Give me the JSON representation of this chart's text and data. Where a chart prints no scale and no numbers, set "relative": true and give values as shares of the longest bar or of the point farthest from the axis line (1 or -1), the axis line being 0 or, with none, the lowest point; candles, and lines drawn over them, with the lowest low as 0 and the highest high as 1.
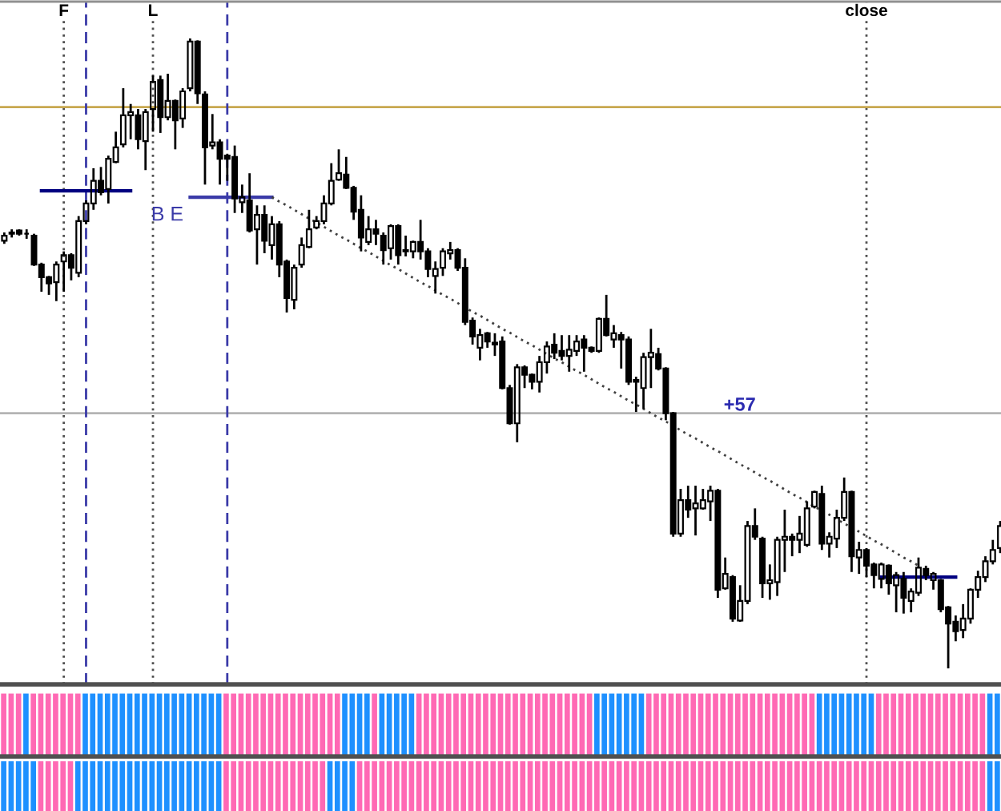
{
  "chart_data": [
    {
      "type": "candlestick",
      "relative": true,
      "tick_labels": "x",
      "color": "#000000",
      "categories": [
        null,
        null,
        null,
        null,
        null,
        null,
        null,
        null,
        "F",
        null,
        null,
        null,
        null,
        null,
        null,
        null,
        null,
        null,
        null,
        null,
        "L",
        null,
        null,
        null,
        null,
        null,
        null,
        null,
        null,
        null,
        null,
        null,
        null,
        null,
        null,
        null,
        null,
        null,
        null,
        null,
        null,
        null,
        null,
        null,
        null,
        null,
        null,
        null,
        null,
        null,
        null,
        null,
        null,
        null,
        null,
        null,
        null,
        null,
        null,
        null,
        null,
        null,
        null,
        null,
        null,
        null,
        null,
        null,
        null,
        null,
        null,
        null,
        null,
        null,
        null,
        null,
        null,
        null,
        null,
        null,
        null,
        null,
        null,
        null,
        null,
        null,
        null,
        null,
        null,
        null,
        null,
        null,
        null,
        null,
        null,
        null,
        null,
        null,
        null,
        null,
        null,
        null,
        null,
        null,
        null,
        null,
        null,
        null,
        null,
        null,
        null,
        null,
        null,
        null,
        null,
        null,
        "close",
        null,
        null,
        null,
        null,
        null,
        null,
        null,
        null,
        null,
        null,
        null,
        null,
        null,
        null,
        null,
        null,
        null,
        null
      ],
      "ohlc": [
        [
          0.679,
          0.692,
          0.674,
          0.687
        ],
        [
          0.69,
          0.697,
          0.684,
          0.692
        ],
        [
          0.695,
          0.697,
          0.687,
          0.69
        ],
        [
          0.69,
          0.697,
          0.682,
          0.69
        ],
        [
          0.687,
          0.69,
          0.639,
          0.641
        ],
        [
          0.641,
          0.644,
          0.598,
          0.621
        ],
        [
          0.621,
          0.623,
          0.593,
          0.611
        ],
        [
          0.613,
          0.646,
          0.583,
          0.641
        ],
        [
          0.646,
          0.662,
          0.598,
          0.656
        ],
        [
          0.656,
          0.659,
          0.616,
          0.636
        ],
        [
          0.628,
          0.718,
          0.621,
          0.71
        ],
        [
          0.71,
          0.743,
          0.705,
          0.738
        ],
        [
          0.738,
          0.794,
          0.728,
          0.774
        ],
        [
          0.774,
          0.796,
          0.751,
          0.756
        ],
        [
          0.761,
          0.814,
          0.738,
          0.809
        ],
        [
          0.804,
          0.852,
          0.802,
          0.827
        ],
        [
          0.832,
          0.921,
          0.827,
          0.878
        ],
        [
          0.878,
          0.896,
          0.84,
          0.883
        ],
        [
          0.878,
          0.888,
          0.824,
          0.84
        ],
        [
          0.837,
          0.888,
          0.791,
          0.883
        ],
        [
          0.888,
          0.941,
          0.852,
          0.931
        ],
        [
          0.934,
          0.941,
          0.85,
          0.875
        ],
        [
          0.875,
          0.944,
          0.87,
          0.901
        ],
        [
          0.901,
          0.903,
          0.824,
          0.87
        ],
        [
          0.873,
          0.921,
          0.858,
          0.916
        ],
        [
          0.921,
          1,
          0.916,
          0.995
        ],
        [
          0.995,
          0.997,
          0.896,
          0.913
        ],
        [
          0.911,
          0.916,
          0.768,
          0.827
        ],
        [
          0.83,
          0.88,
          0.824,
          0.835
        ],
        [
          0.835,
          0.84,
          0.768,
          0.809
        ],
        [
          0.814,
          0.817,
          0.774,
          0.809
        ],
        [
          0.812,
          0.83,
          0.723,
          0.746
        ],
        [
          0.74,
          0.768,
          0.723,
          0.748
        ],
        [
          0.743,
          0.786,
          0.692,
          0.695
        ],
        [
          0.697,
          0.735,
          0.641,
          0.72
        ],
        [
          0.72,
          0.735,
          0.659,
          0.679
        ],
        [
          0.672,
          0.718,
          0.649,
          0.705
        ],
        [
          0.705,
          0.71,
          0.621,
          0.641
        ],
        [
          0.646,
          0.649,
          0.565,
          0.588
        ],
        [
          0.585,
          0.641,
          0.57,
          0.636
        ],
        [
          0.641,
          0.684,
          0.636,
          0.672
        ],
        [
          0.669,
          0.728,
          0.667,
          0.697
        ],
        [
          0.7,
          0.718,
          0.697,
          0.71
        ],
        [
          0.71,
          0.751,
          0.705,
          0.738
        ],
        [
          0.738,
          0.802,
          0.735,
          0.774
        ],
        [
          0.776,
          0.824,
          0.774,
          0.786
        ],
        [
          0.784,
          0.812,
          0.761,
          0.763
        ],
        [
          0.763,
          0.766,
          0.712,
          0.725
        ],
        [
          0.728,
          0.751,
          0.662,
          0.684
        ],
        [
          0.677,
          0.718,
          0.672,
          0.697
        ],
        [
          0.697,
          0.712,
          0.672,
          0.69
        ],
        [
          0.687,
          0.692,
          0.641,
          0.664
        ],
        [
          0.667,
          0.705,
          0.649,
          0.702
        ],
        [
          0.702,
          0.705,
          0.641,
          0.656
        ],
        [
          0.664,
          0.687,
          0.654,
          0.662
        ],
        [
          0.662,
          0.679,
          0.651,
          0.677
        ],
        [
          0.677,
          0.712,
          0.649,
          0.662
        ],
        [
          0.662,
          0.667,
          0.621,
          0.634
        ],
        [
          0.623,
          0.646,
          0.595,
          0.634
        ],
        [
          0.636,
          0.667,
          0.623,
          0.662
        ],
        [
          0.659,
          0.677,
          0.649,
          0.664
        ],
        [
          0.664,
          0.667,
          0.631,
          0.636
        ],
        [
          0.636,
          0.651,
          0.545,
          0.55
        ],
        [
          0.552,
          0.557,
          0.514,
          0.527
        ],
        [
          0.509,
          0.539,
          0.489,
          0.529
        ],
        [
          0.532,
          0.534,
          0.509,
          0.519
        ],
        [
          0.517,
          0.532,
          0.496,
          0.514
        ],
        [
          0.519,
          0.527,
          0.443,
          0.445
        ],
        [
          0.445,
          0.45,
          0.387,
          0.389
        ],
        [
          0.389,
          0.483,
          0.359,
          0.478
        ],
        [
          0.478,
          0.481,
          0.445,
          0.466
        ],
        [
          0.466,
          0.468,
          0.443,
          0.455
        ],
        [
          0.455,
          0.496,
          0.438,
          0.486
        ],
        [
          0.486,
          0.519,
          0.468,
          0.511
        ],
        [
          0.514,
          0.532,
          0.491,
          0.501
        ],
        [
          0.504,
          0.529,
          0.489,
          0.496
        ],
        [
          0.496,
          0.529,
          0.471,
          0.506
        ],
        [
          0.504,
          0.529,
          0.496,
          0.519
        ],
        [
          0.522,
          0.529,
          0.471,
          0.509
        ],
        [
          0.509,
          0.511,
          0.501,
          0.504
        ],
        [
          0.504,
          0.557,
          0.501,
          0.555
        ],
        [
          0.555,
          0.593,
          0.527,
          0.529
        ],
        [
          0.522,
          0.545,
          0.509,
          0.532
        ],
        [
          0.529,
          0.534,
          0.476,
          0.522
        ],
        [
          0.522,
          0.527,
          0.45,
          0.455
        ],
        [
          0.458,
          0.463,
          0.407,
          0.455
        ],
        [
          0.445,
          0.501,
          0.412,
          0.494
        ],
        [
          0.494,
          0.539,
          0.445,
          0.501
        ],
        [
          0.499,
          0.509,
          0.473,
          0.476
        ],
        [
          0.476,
          0.478,
          0.394,
          0.405
        ],
        [
          0.405,
          0.407,
          0.209,
          0.214
        ],
        [
          0.214,
          0.285,
          0.209,
          0.267
        ],
        [
          0.267,
          0.29,
          0.239,
          0.252
        ],
        [
          0.254,
          0.29,
          0.211,
          0.262
        ],
        [
          0.254,
          0.285,
          0.252,
          0.267
        ],
        [
          0.265,
          0.29,
          0.234,
          0.282
        ],
        [
          0.282,
          0.285,
          0.112,
          0.125
        ],
        [
          0.127,
          0.176,
          0.125,
          0.15
        ],
        [
          0.145,
          0.148,
          0.074,
          0.079
        ],
        [
          0.076,
          0.132,
          0.074,
          0.107
        ],
        [
          0.107,
          0.234,
          0.102,
          0.226
        ],
        [
          0.226,
          0.254,
          0.204,
          0.209
        ],
        [
          0.206,
          0.209,
          0.112,
          0.135
        ],
        [
          0.135,
          0.165,
          0.109,
          0.14
        ],
        [
          0.137,
          0.209,
          0.115,
          0.204
        ],
        [
          0.204,
          0.252,
          0.153,
          0.209
        ],
        [
          0.209,
          0.214,
          0.178,
          0.204
        ],
        [
          0.204,
          0.242,
          0.183,
          0.214
        ],
        [
          0.196,
          0.265,
          0.193,
          0.254
        ],
        [
          0.257,
          0.282,
          0.254,
          0.28
        ],
        [
          0.277,
          0.29,
          0.188,
          0.198
        ],
        [
          0.198,
          0.216,
          0.176,
          0.209
        ],
        [
          0.206,
          0.252,
          0.191,
          0.239
        ],
        [
          0.239,
          0.303,
          0.234,
          0.28
        ],
        [
          0.28,
          0.282,
          0.153,
          0.178
        ],
        [
          0.176,
          0.201,
          0.15,
          0.188
        ],
        [
          0.188,
          0.191,
          0.145,
          0.163
        ],
        [
          0.165,
          0.168,
          0.127,
          0.148
        ],
        [
          0.142,
          0.168,
          0.127,
          0.165
        ],
        [
          0.163,
          0.165,
          0.117,
          0.135
        ],
        [
          0.132,
          0.153,
          0.089,
          0.148
        ],
        [
          0.142,
          0.153,
          0.087,
          0.112
        ],
        [
          0.107,
          0.127,
          0.089,
          0.122
        ],
        [
          0.12,
          0.176,
          0.115,
          0.16
        ],
        [
          0.158,
          0.163,
          0.14,
          0.148
        ],
        [
          0.14,
          0.153,
          0.125,
          0.15
        ],
        [
          0.14,
          0.142,
          0.089,
          0.094
        ],
        [
          0.097,
          0.099,
          0,
          0.071
        ],
        [
          0.074,
          0.084,
          0.043,
          0.059
        ],
        [
          0.061,
          0.102,
          0.048,
          0.079
        ],
        [
          0.079,
          0.127,
          0.071,
          0.125
        ],
        [
          0.125,
          0.155,
          0.112,
          0.145
        ],
        [
          0.145,
          0.178,
          0.137,
          0.17
        ],
        [
          0.17,
          0.204,
          0.165,
          0.188
        ],
        [
          0.191,
          0.234,
          0.183,
          0.226
        ]
      ],
      "series": [
        {
          "type": "line",
          "color": "#000080",
          "values": [
            null,
            null,
            null,
            null,
            null,
            0.758,
            0.758,
            0.758,
            0.758,
            0.758,
            0.758,
            0.758,
            0.758,
            0.758,
            0.758,
            0.758,
            0.758,
            0.758,
            null,
            null,
            null,
            null,
            null,
            null,
            null,
            null,
            null,
            null,
            null,
            null,
            null,
            null,
            null,
            null,
            null,
            null,
            null,
            null,
            null,
            null,
            null,
            null,
            null,
            null,
            null,
            null,
            null,
            null,
            null,
            null,
            null,
            null,
            null,
            null,
            null,
            null,
            null,
            null,
            null,
            null,
            null,
            null,
            null,
            null,
            null,
            null,
            null,
            null,
            null,
            null,
            null,
            null,
            null,
            null,
            null,
            null,
            null,
            null,
            null,
            null,
            null,
            null,
            null,
            null,
            null,
            null,
            null,
            null,
            null,
            null,
            null,
            null,
            null,
            null,
            null,
            null,
            null,
            null,
            null,
            null,
            null,
            null,
            null,
            null,
            null,
            null,
            null,
            null,
            null,
            null,
            null,
            null,
            null,
            null,
            null,
            null,
            null,
            null,
            null,
            null,
            null,
            null,
            null,
            null,
            null,
            null,
            null,
            null,
            null,
            null,
            null,
            null,
            null,
            null,
            null
          ]
        },
        {
          "type": "line",
          "name": "B E",
          "color": "#3a3aa8",
          "values": [
            null,
            null,
            null,
            null,
            null,
            null,
            null,
            null,
            null,
            null,
            null,
            null,
            null,
            null,
            null,
            null,
            null,
            null,
            null,
            null,
            null,
            null,
            null,
            null,
            null,
            0.748,
            0.748,
            0.748,
            0.748,
            0.748,
            0.748,
            0.748,
            0.748,
            0.748,
            0.748,
            0.748,
            0.748,
            null,
            null,
            null,
            null,
            null,
            null,
            null,
            null,
            null,
            null,
            null,
            null,
            null,
            null,
            null,
            null,
            null,
            null,
            null,
            null,
            null,
            null,
            null,
            null,
            null,
            null,
            null,
            null,
            null,
            null,
            null,
            null,
            null,
            null,
            null,
            null,
            null,
            null,
            null,
            null,
            null,
            null,
            null,
            null,
            null,
            null,
            null,
            null,
            null,
            null,
            null,
            null,
            null,
            null,
            null,
            null,
            null,
            null,
            null,
            null,
            null,
            null,
            null,
            null,
            null,
            null,
            null,
            null,
            null,
            null,
            null,
            null,
            null,
            null,
            null,
            null,
            null,
            null,
            null,
            null,
            null,
            null,
            null,
            null,
            null,
            null,
            null,
            null,
            null,
            null,
            null,
            null,
            null,
            null,
            null,
            null,
            null,
            null
          ]
        },
        {
          "type": "line",
          "color": "#000080",
          "values": [
            null,
            null,
            null,
            null,
            null,
            null,
            null,
            null,
            null,
            null,
            null,
            null,
            null,
            null,
            null,
            null,
            null,
            null,
            null,
            null,
            null,
            null,
            null,
            null,
            null,
            null,
            null,
            null,
            null,
            null,
            null,
            null,
            null,
            null,
            null,
            null,
            null,
            null,
            null,
            null,
            null,
            null,
            null,
            null,
            null,
            null,
            null,
            null,
            null,
            null,
            null,
            null,
            null,
            null,
            null,
            null,
            null,
            null,
            null,
            null,
            null,
            null,
            null,
            null,
            null,
            null,
            null,
            null,
            null,
            null,
            null,
            null,
            null,
            null,
            null,
            null,
            null,
            null,
            null,
            null,
            null,
            null,
            null,
            null,
            null,
            null,
            null,
            null,
            null,
            null,
            null,
            null,
            null,
            null,
            null,
            null,
            null,
            null,
            null,
            null,
            null,
            null,
            null,
            null,
            null,
            null,
            null,
            null,
            null,
            null,
            null,
            null,
            null,
            null,
            null,
            null,
            null,
            null,
            0.145,
            0.145,
            0.145,
            0.145,
            0.145,
            0.145,
            0.145,
            0.145,
            0.145,
            0.145,
            0.145,
            null,
            null,
            null,
            null,
            null,
            null
          ]
        },
        {
          "type": "line",
          "color": "#404040",
          "line_style": "dotted",
          "values": [
            null,
            null,
            null,
            null,
            null,
            null,
            null,
            null,
            null,
            null,
            null,
            null,
            null,
            null,
            null,
            null,
            null,
            null,
            null,
            null,
            null,
            null,
            null,
            null,
            null,
            null,
            null,
            null,
            null,
            null,
            null,
            null,
            null,
            null,
            null,
            null,
            0.748,
            0.741,
            0.735,
            0.728,
            0.721,
            0.714,
            0.708,
            0.701,
            0.694,
            0.687,
            0.681,
            0.674,
            0.667,
            0.661,
            0.654,
            0.647,
            0.64,
            0.634,
            0.627,
            0.62,
            0.613,
            0.607,
            0.6,
            0.593,
            0.587,
            0.58,
            0.573,
            0.566,
            0.56,
            0.553,
            0.546,
            0.539,
            0.533,
            0.526,
            0.519,
            0.513,
            0.506,
            0.499,
            0.492,
            0.486,
            0.479,
            0.472,
            0.466,
            0.459,
            0.452,
            0.445,
            0.439,
            0.432,
            0.425,
            0.419,
            0.412,
            0.405,
            0.398,
            0.392,
            0.385,
            0.378,
            0.371,
            0.365,
            0.358,
            0.351,
            0.345,
            0.338,
            0.331,
            0.324,
            0.318,
            0.311,
            0.304,
            0.298,
            0.291,
            0.284,
            0.277,
            0.271,
            0.264,
            0.257,
            0.25,
            0.244,
            0.237,
            0.23,
            0.224,
            0.217,
            0.21,
            0.203,
            0.197,
            0.19,
            0.183,
            0.176,
            0.17,
            0.163,
            null,
            null,
            null,
            null,
            null,
            null,
            null,
            null,
            null,
            null,
            null
          ]
        }
      ],
      "ref_lines": [
        {
          "axis": "x",
          "value": "F",
          "color": "#505050",
          "line_style": "dotted"
        },
        {
          "axis": "x",
          "value": "L",
          "color": "#505050",
          "line_style": "dotted"
        },
        {
          "axis": "x",
          "value": "close",
          "color": "#505050",
          "line_style": "dotted"
        },
        {
          "axis": "y",
          "value": 0.891,
          "color": "#c8a850"
        },
        {
          "axis": "y",
          "value": 0.405,
          "color": "#b4b4b4"
        }
      ],
      "annotations": [
        "+57"
      ]
    },
    {
      "type": "bar",
      "relative": true,
      "categories": [
        null,
        null,
        null,
        null,
        null,
        null,
        null,
        null,
        null,
        null,
        null,
        null,
        null,
        null,
        null,
        null,
        null,
        null,
        null,
        null,
        null,
        null,
        null,
        null,
        null,
        null,
        null,
        null,
        null,
        null,
        null,
        null,
        null,
        null,
        null,
        null,
        null,
        null,
        null,
        null,
        null,
        null,
        null,
        null,
        null,
        null,
        null,
        null,
        null,
        null,
        null,
        null,
        null,
        null,
        null,
        null,
        null,
        null,
        null,
        null,
        null,
        null,
        null,
        null,
        null,
        null,
        null,
        null,
        null,
        null,
        null,
        null,
        null,
        null,
        null,
        null,
        null,
        null,
        null,
        null,
        null,
        null,
        null,
        null,
        null,
        null,
        null,
        null,
        null,
        null,
        null,
        null,
        null,
        null,
        null,
        null,
        null,
        null,
        null,
        null,
        null,
        null,
        null,
        null,
        null,
        null,
        null,
        null,
        null,
        null,
        null,
        null,
        null,
        null,
        null,
        null,
        null,
        null,
        null,
        null,
        null,
        null,
        null,
        null,
        null,
        null,
        null,
        null,
        null,
        null,
        null,
        null,
        null,
        null,
        null
      ],
      "values": [
        1,
        1,
        1,
        1,
        1,
        1,
        1,
        1,
        1,
        1,
        1,
        1,
        1,
        1,
        1,
        1,
        1,
        1,
        1,
        1,
        1,
        1,
        1,
        1,
        1,
        1,
        1,
        1,
        1,
        1,
        1,
        1,
        1,
        1,
        1,
        1,
        1,
        1,
        1,
        1,
        1,
        1,
        1,
        1,
        1,
        1,
        1,
        1,
        1,
        1,
        1,
        1,
        1,
        1,
        1,
        1,
        1,
        1,
        1,
        1,
        1,
        1,
        1,
        1,
        1,
        1,
        1,
        1,
        1,
        1,
        1,
        1,
        1,
        1,
        1,
        1,
        1,
        1,
        1,
        1,
        1,
        1,
        1,
        1,
        1,
        1,
        1,
        1,
        1,
        1,
        1,
        1,
        1,
        1,
        1,
        1,
        1,
        1,
        1,
        1,
        1,
        1,
        1,
        1,
        1,
        1,
        1,
        1,
        1,
        1,
        1,
        1,
        1,
        1,
        1,
        1,
        1,
        1,
        1,
        1,
        1,
        1,
        1,
        1,
        1,
        1,
        1,
        1,
        1,
        1,
        1,
        1,
        1,
        1,
        1
      ],
      "colors": [
        "#ff69b4",
        "#ff69b4",
        "#ff69b4",
        "#1e90ff",
        "#ff69b4",
        "#ff69b4",
        "#ff69b4",
        "#ff69b4",
        "#ff69b4",
        "#ff69b4",
        "#ff69b4",
        "#1e90ff",
        "#1e90ff",
        "#1e90ff",
        "#1e90ff",
        "#1e90ff",
        "#1e90ff",
        "#1e90ff",
        "#1e90ff",
        "#1e90ff",
        "#1e90ff",
        "#1e90ff",
        "#1e90ff",
        "#1e90ff",
        "#1e90ff",
        "#1e90ff",
        "#1e90ff",
        "#1e90ff",
        "#1e90ff",
        "#1e90ff",
        "#ff69b4",
        "#ff69b4",
        "#ff69b4",
        "#ff69b4",
        "#ff69b4",
        "#ff69b4",
        "#ff69b4",
        "#ff69b4",
        "#ff69b4",
        "#ff69b4",
        "#ff69b4",
        "#ff69b4",
        "#ff69b4",
        "#ff69b4",
        "#ff69b4",
        "#ff69b4",
        "#1e90ff",
        "#1e90ff",
        "#1e90ff",
        "#1e90ff",
        "#ff69b4",
        "#1e90ff",
        "#1e90ff",
        "#1e90ff",
        "#1e90ff",
        "#1e90ff",
        "#ff69b4",
        "#ff69b4",
        "#ff69b4",
        "#ff69b4",
        "#ff69b4",
        "#ff69b4",
        "#ff69b4",
        "#ff69b4",
        "#ff69b4",
        "#ff69b4",
        "#ff69b4",
        "#ff69b4",
        "#ff69b4",
        "#ff69b4",
        "#ff69b4",
        "#ff69b4",
        "#ff69b4",
        "#ff69b4",
        "#ff69b4",
        "#ff69b4",
        "#ff69b4",
        "#ff69b4",
        "#ff69b4",
        "#ff69b4",
        "#1e90ff",
        "#1e90ff",
        "#1e90ff",
        "#1e90ff",
        "#1e90ff",
        "#1e90ff",
        "#1e90ff",
        "#ff69b4",
        "#ff69b4",
        "#ff69b4",
        "#ff69b4",
        "#ff69b4",
        "#ff69b4",
        "#ff69b4",
        "#ff69b4",
        "#ff69b4",
        "#ff69b4",
        "#ff69b4",
        "#ff69b4",
        "#ff69b4",
        "#ff69b4",
        "#ff69b4",
        "#ff69b4",
        "#ff69b4",
        "#ff69b4",
        "#ff69b4",
        "#ff69b4",
        "#ff69b4",
        "#ff69b4",
        "#ff69b4",
        "#1e90ff",
        "#1e90ff",
        "#1e90ff",
        "#1e90ff",
        "#1e90ff",
        "#1e90ff",
        "#1e90ff",
        "#1e90ff",
        "#ff69b4",
        "#ff69b4",
        "#ff69b4",
        "#ff69b4",
        "#ff69b4",
        "#ff69b4",
        "#ff69b4",
        "#ff69b4",
        "#ff69b4",
        "#ff69b4",
        "#ff69b4",
        "#ff69b4",
        "#ff69b4",
        "#ff69b4",
        "#ff69b4",
        "#1e90ff",
        "#1e90ff"
      ]
    },
    {
      "type": "bar",
      "relative": true,
      "categories": [
        null,
        null,
        null,
        null,
        null,
        null,
        null,
        null,
        null,
        null,
        null,
        null,
        null,
        null,
        null,
        null,
        null,
        null,
        null,
        null,
        null,
        null,
        null,
        null,
        null,
        null,
        null,
        null,
        null,
        null,
        null,
        null,
        null,
        null,
        null,
        null,
        null,
        null,
        null,
        null,
        null,
        null,
        null,
        null,
        null,
        null,
        null,
        null,
        null,
        null,
        null,
        null,
        null,
        null,
        null,
        null,
        null,
        null,
        null,
        null,
        null,
        null,
        null,
        null,
        null,
        null,
        null,
        null,
        null,
        null,
        null,
        null,
        null,
        null,
        null,
        null,
        null,
        null,
        null,
        null,
        null,
        null,
        null,
        null,
        null,
        null,
        null,
        null,
        null,
        null,
        null,
        null,
        null,
        null,
        null,
        null,
        null,
        null,
        null,
        null,
        null,
        null,
        null,
        null,
        null,
        null,
        null,
        null,
        null,
        null,
        null,
        null,
        null,
        null,
        null,
        null,
        null,
        null,
        null,
        null,
        null,
        null,
        null,
        null,
        null,
        null,
        null,
        null,
        null,
        null,
        null,
        null,
        null,
        null,
        null
      ],
      "values": [
        1,
        1,
        1,
        1,
        1,
        1,
        1,
        1,
        1,
        1,
        1,
        1,
        1,
        1,
        1,
        1,
        1,
        1,
        1,
        1,
        1,
        1,
        1,
        1,
        1,
        1,
        1,
        1,
        1,
        1,
        1,
        1,
        1,
        1,
        1,
        1,
        1,
        1,
        1,
        1,
        1,
        1,
        1,
        1,
        1,
        1,
        1,
        1,
        1,
        1,
        1,
        1,
        1,
        1,
        1,
        1,
        1,
        1,
        1,
        1,
        1,
        1,
        1,
        1,
        1,
        1,
        1,
        1,
        1,
        1,
        1,
        1,
        1,
        1,
        1,
        1,
        1,
        1,
        1,
        1,
        1,
        1,
        1,
        1,
        1,
        1,
        1,
        1,
        1,
        1,
        1,
        1,
        1,
        1,
        1,
        1,
        1,
        1,
        1,
        1,
        1,
        1,
        1,
        1,
        1,
        1,
        1,
        1,
        1,
        1,
        1,
        1,
        1,
        1,
        1,
        1,
        1,
        1,
        1,
        1,
        1,
        1,
        1,
        1,
        1,
        1,
        1,
        1,
        1,
        1,
        1,
        1,
        1,
        1,
        1
      ],
      "colors": [
        "#1e90ff",
        "#1e90ff",
        "#1e90ff",
        "#1e90ff",
        "#1e90ff",
        "#ff69b4",
        "#ff69b4",
        "#ff69b4",
        "#ff69b4",
        "#ff69b4",
        "#1e90ff",
        "#1e90ff",
        "#1e90ff",
        "#1e90ff",
        "#1e90ff",
        "#1e90ff",
        "#1e90ff",
        "#1e90ff",
        "#1e90ff",
        "#1e90ff",
        "#1e90ff",
        "#1e90ff",
        "#1e90ff",
        "#1e90ff",
        "#1e90ff",
        "#1e90ff",
        "#1e90ff",
        "#1e90ff",
        "#1e90ff",
        "#1e90ff",
        "#ff69b4",
        "#ff69b4",
        "#ff69b4",
        "#ff69b4",
        "#ff69b4",
        "#ff69b4",
        "#ff69b4",
        "#ff69b4",
        "#ff69b4",
        "#ff69b4",
        "#ff69b4",
        "#ff69b4",
        "#ff69b4",
        "#ff69b4",
        "#1e90ff",
        "#1e90ff",
        "#1e90ff",
        "#1e90ff",
        "#ff69b4",
        "#ff69b4",
        "#ff69b4",
        "#ff69b4",
        "#ff69b4",
        "#ff69b4",
        "#ff69b4",
        "#ff69b4",
        "#ff69b4",
        "#ff69b4",
        "#ff69b4",
        "#ff69b4",
        "#ff69b4",
        "#ff69b4",
        "#ff69b4",
        "#ff69b4",
        "#ff69b4",
        "#ff69b4",
        "#ff69b4",
        "#ff69b4",
        "#ff69b4",
        "#ff69b4",
        "#ff69b4",
        "#ff69b4",
        "#ff69b4",
        "#ff69b4",
        "#ff69b4",
        "#ff69b4",
        "#ff69b4",
        "#ff69b4",
        "#ff69b4",
        "#ff69b4",
        "#ff69b4",
        "#ff69b4",
        "#ff69b4",
        "#ff69b4",
        "#ff69b4",
        "#ff69b4",
        "#ff69b4",
        "#ff69b4",
        "#ff69b4",
        "#ff69b4",
        "#ff69b4",
        "#ff69b4",
        "#ff69b4",
        "#ff69b4",
        "#ff69b4",
        "#ff69b4",
        "#ff69b4",
        "#ff69b4",
        "#ff69b4",
        "#ff69b4",
        "#ff69b4",
        "#ff69b4",
        "#ff69b4",
        "#ff69b4",
        "#ff69b4",
        "#ff69b4",
        "#ff69b4",
        "#ff69b4",
        "#ff69b4",
        "#ff69b4",
        "#ff69b4",
        "#ff69b4",
        "#ff69b4",
        "#ff69b4",
        "#ff69b4",
        "#ff69b4",
        "#ff69b4",
        "#ff69b4",
        "#ff69b4",
        "#ff69b4",
        "#ff69b4",
        "#ff69b4",
        "#ff69b4",
        "#ff69b4",
        "#ff69b4",
        "#ff69b4",
        "#ff69b4",
        "#ff69b4",
        "#ff69b4",
        "#ff69b4",
        "#ff69b4",
        "#ff69b4",
        "#ff69b4",
        "#1e90ff",
        "#1e90ff"
      ]
    }
  ]
}
